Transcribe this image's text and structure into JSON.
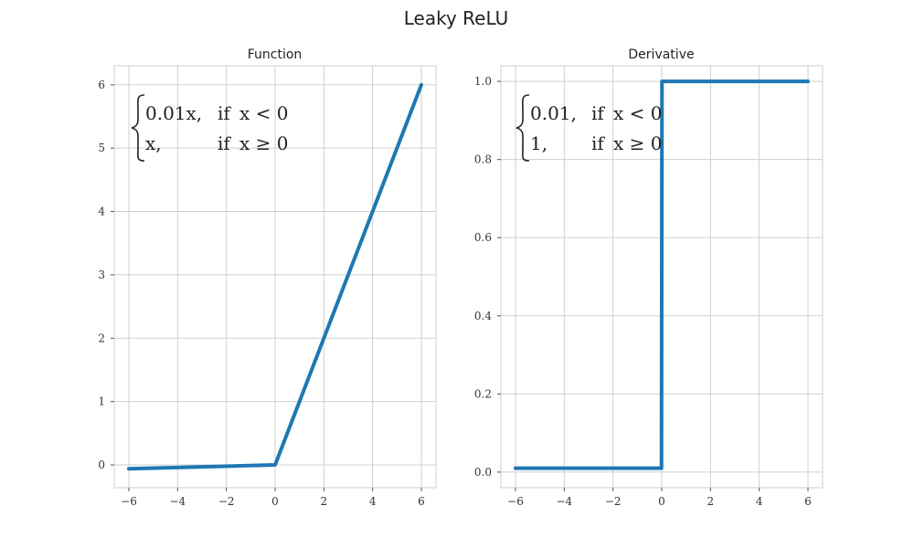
{
  "figure": {
    "title": "Leaky ReLU",
    "line_color": "#1f77b4",
    "grid_color": "#cfcfcf"
  },
  "chart_data": [
    {
      "type": "line",
      "title": "Function",
      "xlabel": "",
      "ylabel": "",
      "xlim": [
        -6.6,
        6.6
      ],
      "ylim": [
        -0.36,
        6.3
      ],
      "grid": true,
      "x_ticks": [
        -6,
        -4,
        -2,
        0,
        2,
        4,
        6
      ],
      "x_tick_labels": [
        "−6",
        "−4",
        "−2",
        "0",
        "2",
        "4",
        "6"
      ],
      "y_ticks": [
        0,
        1,
        2,
        3,
        4,
        5,
        6
      ],
      "y_tick_labels": [
        "0",
        "1",
        "2",
        "3",
        "4",
        "5",
        "6"
      ],
      "series": [
        {
          "x": [
            -6,
            0,
            6
          ],
          "y": [
            -0.06,
            0,
            6
          ]
        }
      ],
      "formula": {
        "rows": [
          {
            "expr": "0.01x,",
            "cond_word": "if",
            "cond_expr": "x < 0"
          },
          {
            "expr": "x,",
            "cond_word": "if",
            "cond_expr": "x ≥ 0"
          }
        ]
      }
    },
    {
      "type": "line",
      "title": "Derivative",
      "xlabel": "",
      "ylabel": "",
      "xlim": [
        -6.6,
        6.6
      ],
      "ylim": [
        -0.04,
        1.04
      ],
      "grid": true,
      "x_ticks": [
        -6,
        -4,
        -2,
        0,
        2,
        4,
        6
      ],
      "x_tick_labels": [
        "−6",
        "−4",
        "−2",
        "0",
        "2",
        "4",
        "6"
      ],
      "y_ticks": [
        0,
        0.2,
        0.4,
        0.6,
        0.8,
        1.0
      ],
      "y_tick_labels": [
        "0.0",
        "0.2",
        "0.4",
        "0.6",
        "0.8",
        "1.0"
      ],
      "series": [
        {
          "x": [
            -6,
            -0.01,
            0.01,
            6
          ],
          "y": [
            0.01,
            0.01,
            1,
            1
          ]
        }
      ],
      "formula": {
        "rows": [
          {
            "expr": "0.01,",
            "cond_word": "if",
            "cond_expr": "x < 0"
          },
          {
            "expr": "1,",
            "cond_word": "if",
            "cond_expr": "x ≥ 0"
          }
        ]
      }
    }
  ]
}
